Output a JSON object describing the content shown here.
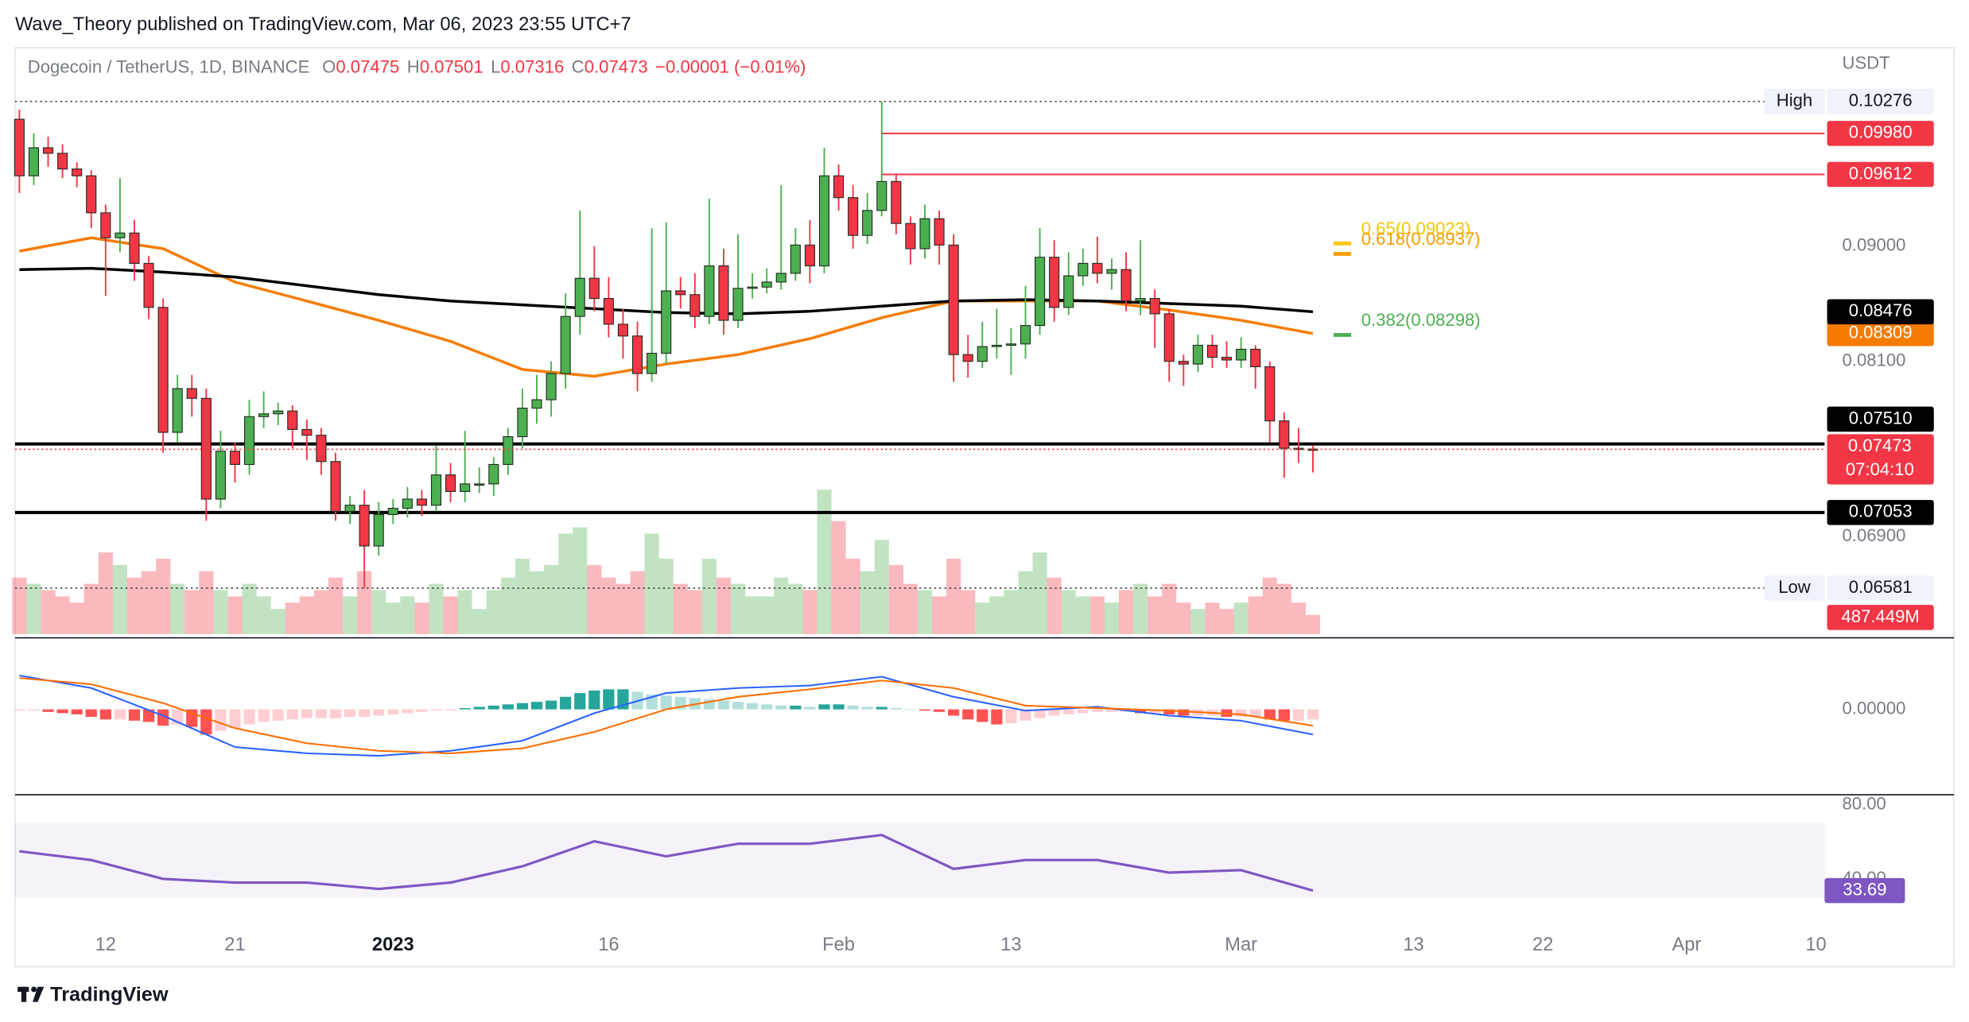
{
  "header": "Wave_Theory published on TradingView.com, Mar 06, 2023 23:55 UTC+7",
  "footer": "TradingView",
  "chart_data": {
    "type": "candlestick",
    "title": "Dogecoin / TetherUS, 1D, BINANCE",
    "ohlc_letters": [
      "O",
      "H",
      "L",
      "C"
    ],
    "change": "−0.00001 (−0.01%)",
    "currency": "USDT",
    "up_color": "#4caf50",
    "down_color": "#f23645",
    "log_scale": true,
    "ylim": [
      0.0631,
      0.1077
    ],
    "yticks": [
      {
        "value": 0.09,
        "label": "0.09000"
      },
      {
        "value": 0.081,
        "label": "0.08100"
      },
      {
        "value": 0.069,
        "label": "0.06900"
      }
    ],
    "xlim": [
      -0.3,
      125.6
    ],
    "xticks": [
      {
        "value": 6,
        "label": "12"
      },
      {
        "value": 15,
        "label": "21"
      },
      {
        "value": 26,
        "label": "2023",
        "bold": true
      },
      {
        "value": 41,
        "label": "16"
      },
      {
        "value": 57,
        "label": "Feb"
      },
      {
        "value": 69,
        "label": "13"
      },
      {
        "value": 85,
        "label": "Mar"
      },
      {
        "value": 97,
        "label": "13"
      },
      {
        "value": 106,
        "label": "22"
      },
      {
        "value": 116,
        "label": "Apr"
      },
      {
        "value": 125,
        "label": "10"
      }
    ],
    "open": [
      0.1011,
      0.096,
      0.0985,
      0.098,
      0.0966,
      0.096,
      0.0928,
      0.0907,
      0.0911,
      0.0886,
      0.0851,
      0.0759,
      0.079,
      0.0783,
      0.0714,
      0.0746,
      0.0737,
      0.077,
      0.0772,
      0.0774,
      0.0761,
      0.0757,
      0.0739,
      0.0706,
      0.071,
      0.0684,
      0.0704,
      0.0708,
      0.0714,
      0.071,
      0.073,
      0.0719,
      0.0724,
      0.0724,
      0.0737,
      0.0756,
      0.0776,
      0.0782,
      0.0801,
      0.0844,
      0.0874,
      0.0858,
      0.0838,
      0.0829,
      0.0801,
      0.0816,
      0.0864,
      0.0861,
      0.0844,
      0.0884,
      0.0841,
      0.0866,
      0.0867,
      0.0871,
      0.0878,
      0.0901,
      0.0884,
      0.096,
      0.0941,
      0.0909,
      0.093,
      0.0955,
      0.0919,
      0.0898,
      0.0923,
      0.0901,
      0.0815,
      0.081,
      0.0821,
      0.0822,
      0.0823,
      0.0837,
      0.0891,
      0.0851,
      0.0876,
      0.0886,
      0.0878,
      0.0881,
      0.0856,
      0.0858,
      0.0846,
      0.081,
      0.0808,
      0.0822,
      0.0813,
      0.0811,
      0.0819,
      0.0806,
      0.0767,
      0.0748,
      0.07475
    ],
    "high": [
      0.102,
      0.0998,
      0.0995,
      0.0988,
      0.0972,
      0.0965,
      0.0935,
      0.0958,
      0.0922,
      0.0892,
      0.0858,
      0.08,
      0.08,
      0.079,
      0.076,
      0.0752,
      0.0782,
      0.0788,
      0.078,
      0.0778,
      0.0768,
      0.0762,
      0.0745,
      0.0716,
      0.072,
      0.0712,
      0.0714,
      0.0722,
      0.072,
      0.075,
      0.0738,
      0.076,
      0.0735,
      0.0742,
      0.0762,
      0.079,
      0.08,
      0.081,
      0.0862,
      0.093,
      0.09,
      0.0875,
      0.085,
      0.084,
      0.0915,
      0.092,
      0.0875,
      0.0878,
      0.094,
      0.0898,
      0.091,
      0.0878,
      0.0882,
      0.0952,
      0.0915,
      0.0922,
      0.0985,
      0.097,
      0.0952,
      0.0945,
      0.10276,
      0.0962,
      0.0925,
      0.0935,
      0.093,
      0.091,
      0.083,
      0.084,
      0.085,
      0.0835,
      0.0868,
      0.0915,
      0.0905,
      0.0895,
      0.0898,
      0.0908,
      0.089,
      0.0895,
      0.0905,
      0.0865,
      0.085,
      0.0815,
      0.083,
      0.083,
      0.0825,
      0.0828,
      0.0822,
      0.081,
      0.0773,
      0.0762,
      0.07501
    ],
    "low": [
      0.0945,
      0.0952,
      0.0968,
      0.0958,
      0.095,
      0.0915,
      0.086,
      0.0895,
      0.0872,
      0.0842,
      0.0745,
      0.0752,
      0.077,
      0.07,
      0.0708,
      0.0725,
      0.073,
      0.0762,
      0.0764,
      0.0748,
      0.074,
      0.073,
      0.07,
      0.0698,
      0.06581,
      0.0678,
      0.0698,
      0.0702,
      0.0703,
      0.0706,
      0.0712,
      0.0712,
      0.0718,
      0.0716,
      0.073,
      0.0748,
      0.0765,
      0.077,
      0.079,
      0.083,
      0.0848,
      0.0828,
      0.0812,
      0.0788,
      0.0795,
      0.0808,
      0.085,
      0.0835,
      0.0838,
      0.083,
      0.0835,
      0.0858,
      0.0862,
      0.0865,
      0.0872,
      0.087,
      0.0878,
      0.093,
      0.0898,
      0.0902,
      0.0925,
      0.091,
      0.0885,
      0.089,
      0.0885,
      0.0795,
      0.0798,
      0.0805,
      0.0812,
      0.08,
      0.0812,
      0.083,
      0.084,
      0.0845,
      0.0868,
      0.087,
      0.0865,
      0.0848,
      0.0845,
      0.082,
      0.0795,
      0.0792,
      0.0802,
      0.0805,
      0.0805,
      0.0805,
      0.079,
      0.0752,
      0.0728,
      0.0738,
      0.07316
    ],
    "close": [
      0.096,
      0.0985,
      0.098,
      0.0966,
      0.096,
      0.0928,
      0.0907,
      0.0911,
      0.0886,
      0.0851,
      0.0759,
      0.079,
      0.0783,
      0.0714,
      0.0746,
      0.0737,
      0.077,
      0.0772,
      0.0774,
      0.0761,
      0.0757,
      0.0739,
      0.0706,
      0.071,
      0.0684,
      0.0704,
      0.0708,
      0.0714,
      0.071,
      0.073,
      0.0719,
      0.0724,
      0.0724,
      0.0737,
      0.0756,
      0.0776,
      0.0782,
      0.0801,
      0.0844,
      0.0874,
      0.0858,
      0.0838,
      0.0829,
      0.0801,
      0.0816,
      0.0864,
      0.0861,
      0.0844,
      0.0884,
      0.0841,
      0.0866,
      0.0867,
      0.0871,
      0.0878,
      0.0901,
      0.0884,
      0.096,
      0.0941,
      0.0909,
      0.093,
      0.0955,
      0.0919,
      0.0898,
      0.0923,
      0.0901,
      0.0815,
      0.081,
      0.0821,
      0.0822,
      0.0823,
      0.0837,
      0.0891,
      0.0851,
      0.0876,
      0.0886,
      0.0878,
      0.0881,
      0.0856,
      0.0858,
      0.0846,
      0.081,
      0.0808,
      0.0822,
      0.0813,
      0.0811,
      0.0819,
      0.0806,
      0.0767,
      0.0748,
      0.07475,
      0.07473
    ],
    "countdown": "07:04:10",
    "volume": [
      1440,
      1280,
      1120,
      960,
      800,
      1280,
      2080,
      1760,
      1440,
      1600,
      1920,
      1280,
      1120,
      1600,
      1120,
      960,
      1280,
      960,
      640,
      800,
      960,
      1120,
      1440,
      960,
      1600,
      1120,
      800,
      960,
      800,
      1280,
      960,
      1120,
      640,
      1120,
      1440,
      1920,
      1600,
      1760,
      2560,
      2720,
      1760,
      1440,
      1280,
      1600,
      2560,
      1920,
      1280,
      1120,
      1920,
      1440,
      1280,
      960,
      960,
      1440,
      1280,
      1120,
      3680,
      2880,
      1920,
      1600,
      2400,
      1760,
      1280,
      1120,
      960,
      1920,
      1120,
      800,
      960,
      1120,
      1600,
      2080,
      1440,
      1120,
      960,
      960,
      800,
      1120,
      1280,
      960,
      1280,
      800,
      640,
      800,
      640,
      800,
      960,
      1440,
      1280,
      800,
      487.449
    ],
    "volume_label": "487.449M",
    "indicator_x": [
      0,
      5,
      10,
      15,
      20,
      25,
      30,
      35,
      40,
      45,
      50,
      55,
      60,
      65,
      70,
      75,
      80,
      85,
      90
    ],
    "moving_averages": [
      {
        "color": "#f57c00",
        "values": [
          0.0896,
          0.0907,
          0.0898,
          0.0871,
          0.0856,
          0.0841,
          0.0825,
          0.0804,
          0.0799,
          0.0808,
          0.0815,
          0.0827,
          0.0843,
          0.0856,
          0.0856,
          0.0856,
          0.0849,
          0.0841,
          0.08309
        ]
      },
      {
        "color": "#000000",
        "values": [
          0.0881,
          0.0882,
          0.0879,
          0.0875,
          0.0868,
          0.0861,
          0.0856,
          0.0853,
          0.085,
          0.0847,
          0.0846,
          0.0848,
          0.0852,
          0.0856,
          0.0857,
          0.0856,
          0.0854,
          0.0852,
          0.08476
        ]
      }
    ],
    "levels": [
      {
        "name": "High",
        "value": 0.10276,
        "label": "0.10276",
        "style": "dotted"
      },
      {
        "value": 0.0998,
        "label": "0.09980",
        "color": "#f23645",
        "from": 60
      },
      {
        "value": 0.09612,
        "label": "0.09612",
        "color": "#f23645",
        "from": 60
      },
      {
        "value": 0.0751,
        "label": "0.07510",
        "color": "#000000"
      },
      {
        "value": 0.07053,
        "label": "0.07053",
        "color": "#000000"
      },
      {
        "name": "Low",
        "value": 0.06581,
        "label": "0.06581",
        "style": "dotted"
      }
    ],
    "fibs": [
      {
        "label": "0.65(0.09023)",
        "value": 0.09023,
        "color": "#f7c600"
      },
      {
        "label": "0.618(0.08937)",
        "value": 0.08937,
        "color": "#f59d00"
      },
      {
        "label": "0.382(0.08298)",
        "value": 0.08298,
        "color": "#4caf50"
      }
    ],
    "macd": {
      "ylim": [
        -0.0067,
        0.0055
      ],
      "yticks": [
        {
          "value": 0,
          "label": "0.00000"
        }
      ],
      "macd_color": "#2962ff",
      "signal_color": "#ff6d00",
      "histogram_colors": [
        "#26a69a",
        "#b2dfdb",
        "#ff5252",
        "#ffcdd2"
      ],
      "macd": [
        0.0027,
        0.0017,
        -0.0005,
        -0.003,
        -0.0035,
        -0.0037,
        -0.0033,
        -0.0025,
        -0.0003,
        0.0013,
        0.0017,
        0.0019,
        0.0026,
        0.001,
        -0.0001,
        0.0002,
        -0.0005,
        -0.0009,
        -0.002
      ],
      "signal": [
        0.0025,
        0.002,
        0.0005,
        -0.0015,
        -0.0027,
        -0.0033,
        -0.0035,
        -0.0031,
        -0.0018,
        0,
        0.001,
        0.0016,
        0.0023,
        0.0017,
        0.0003,
        0.0001,
        -0.0001,
        -0.0004,
        -0.0013
      ],
      "histogram": [
        -0.0001,
        -0.0001,
        -0.0002,
        -0.0003,
        -0.0004,
        -0.0006,
        -0.0008,
        -0.0008,
        -0.0009,
        -0.001,
        -0.0013,
        -0.0012,
        -0.0014,
        -0.002,
        -0.0017,
        -0.0015,
        -0.0012,
        -0.001,
        -0.0009,
        -0.0008,
        -0.0007,
        -0.0007,
        -0.0007,
        -0.0006,
        -0.0006,
        -0.0005,
        -0.0004,
        -0.0003,
        -0.0002,
        -0.0001,
        -0.0001,
        0.0001,
        0.0002,
        0.0003,
        0.0004,
        0.0005,
        0.0006,
        0.0007,
        0.001,
        0.0013,
        0.0015,
        0.0016,
        0.0016,
        0.0014,
        0.0012,
        0.0011,
        0.001,
        0.0009,
        0.0008,
        0.0007,
        0.0006,
        0.0005,
        0.0004,
        0.0003,
        0.0003,
        0.0002,
        0.0004,
        0.0004,
        0.0003,
        0.0002,
        0.0002,
        0.0001,
        0,
        -0.0001,
        -0.0002,
        -0.0005,
        -0.0008,
        -0.001,
        -0.0012,
        -0.0011,
        -0.0009,
        -0.0007,
        -0.0005,
        -0.0004,
        -0.0003,
        -0.0002,
        -0.0002,
        -0.0002,
        -0.0003,
        -0.0003,
        -0.0004,
        -0.0005,
        -0.0005,
        -0.0005,
        -0.0006,
        -0.0006,
        -0.0006,
        -0.0008,
        -0.0009,
        -0.0009,
        -0.0008
      ]
    },
    "rsi": {
      "ylim": [
        12.9,
        83.4
      ],
      "yticks": [
        {
          "value": 80,
          "label": "80.00"
        },
        {
          "value": 40,
          "label": "40.00"
        }
      ],
      "band": [
        30,
        70
      ],
      "color": "#7e57c2",
      "values": [
        54.9,
        50.2,
        40,
        38,
        38,
        34.6,
        38,
        46.8,
        60.3,
        52.2,
        59,
        59,
        63.7,
        45.4,
        50.2,
        50.2,
        43.4,
        44.7,
        33.69
      ]
    }
  }
}
